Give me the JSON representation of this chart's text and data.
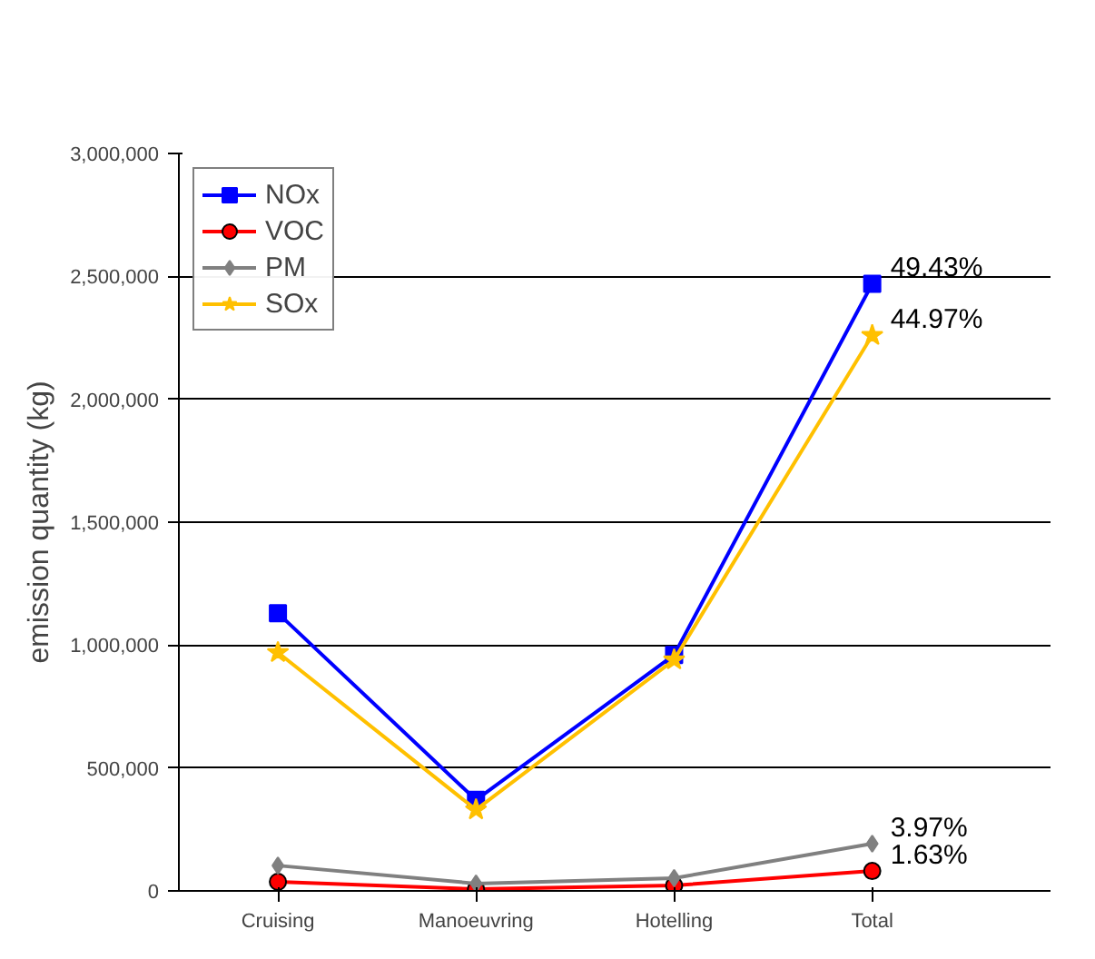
{
  "chart_data": {
    "type": "line",
    "ylabel": "emission quantity (kg)",
    "categories": [
      "Cruising",
      "Manoeuvring",
      "Hotelling",
      "Total"
    ],
    "series": [
      {
        "name": "NOx",
        "color": "#0000ff",
        "marker": "square",
        "values": [
          1130000,
          370000,
          960000,
          2470000
        ]
      },
      {
        "name": "VOC",
        "color": "#ff0000",
        "marker": "circle",
        "values": [
          37000,
          7000,
          22000,
          81000
        ]
      },
      {
        "name": "PM",
        "color": "#808080",
        "marker": "diamond",
        "values": [
          103000,
          30000,
          52000,
          192000
        ]
      },
      {
        "name": "SOx",
        "color": "#ffc000",
        "marker": "star",
        "values": [
          970000,
          330000,
          940000,
          2260000
        ]
      }
    ],
    "ylim": [
      0,
      3000000
    ],
    "yticks": [
      {
        "value": 0,
        "label": "0"
      },
      {
        "value": 500000,
        "label": "500,000"
      },
      {
        "value": 1000000,
        "label": "1,000,000"
      },
      {
        "value": 1500000,
        "label": "1,500,000"
      },
      {
        "value": 2000000,
        "label": "2,000,000"
      },
      {
        "value": 2500000,
        "label": "2,500,000"
      },
      {
        "value": 3000000,
        "label": "3,000,000"
      }
    ],
    "annotations": [
      {
        "text": "49.43%",
        "x": "Total",
        "y": 2470000
      },
      {
        "text": "44.97%",
        "x": "Total",
        "y": 2260000
      },
      {
        "text": "3.97%",
        "x": "Total",
        "y": 192000
      },
      {
        "text": "1.63%",
        "x": "Total",
        "y": 81000
      }
    ],
    "grid": "y",
    "legend": "top left"
  }
}
